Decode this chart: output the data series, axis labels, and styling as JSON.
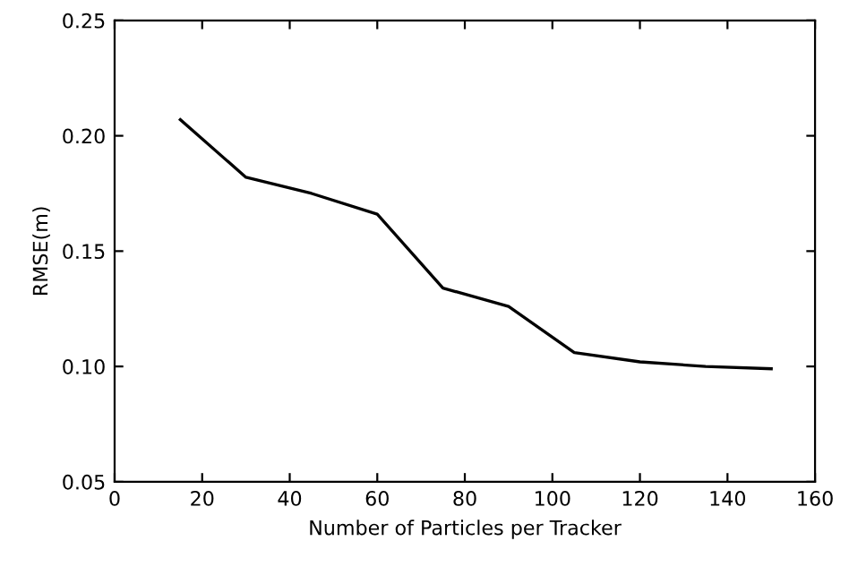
{
  "chart_data": {
    "type": "line",
    "xlabel": "Number of Particles per Tracker",
    "ylabel": "RMSE(m)",
    "x": [
      15,
      30,
      45,
      60,
      75,
      90,
      105,
      120,
      135,
      150
    ],
    "series": [
      {
        "color": "#000000",
        "values": [
          0.207,
          0.182,
          0.175,
          0.166,
          0.134,
          0.126,
          0.106,
          0.102,
          0.1,
          0.099
        ]
      }
    ],
    "xlim": [
      0,
      160
    ],
    "xticks": [
      0,
      20,
      40,
      60,
      80,
      100,
      120,
      140,
      160
    ],
    "ylim": [
      0.05,
      0.25
    ],
    "yticks": [
      {
        "value": 0.05,
        "label": "0.05"
      },
      {
        "value": 0.1,
        "label": "0.10"
      },
      {
        "value": 0.15,
        "label": "0.15"
      },
      {
        "value": 0.2,
        "label": "0.20"
      },
      {
        "value": 0.25,
        "label": "0.25"
      }
    ],
    "grid": false,
    "legend": false,
    "marker": "none",
    "line_style": "solid"
  }
}
